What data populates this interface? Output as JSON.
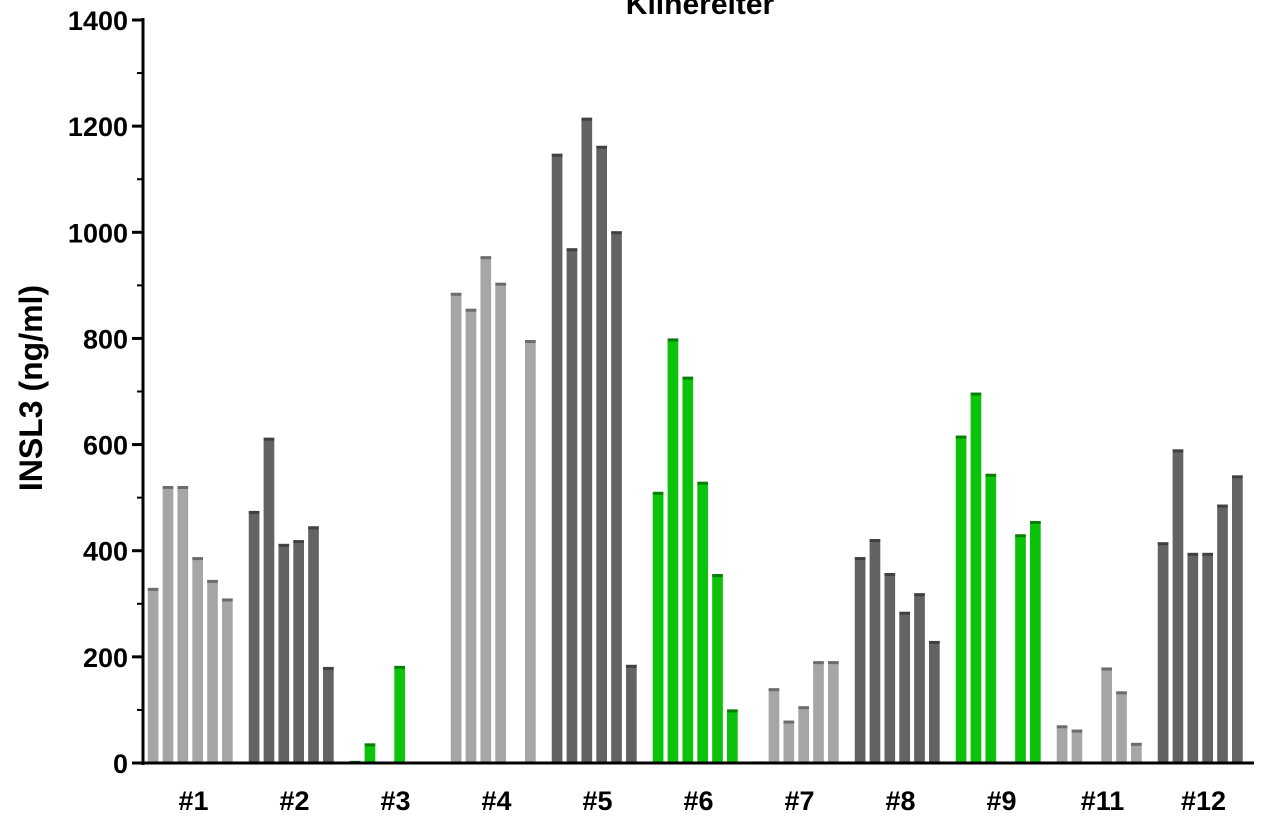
{
  "chart_data": {
    "type": "bar",
    "title": "Klinereiter",
    "ylabel": "INSL3 (ng/ml)",
    "xlabel": "",
    "ylim": [
      0,
      1400
    ],
    "yticks": [
      0,
      200,
      400,
      600,
      800,
      1000,
      1200,
      1400
    ],
    "grid": false,
    "colors": {
      "light_gray": "#a6a6a8",
      "dark_gray": "#636363",
      "green": "#0bc30b"
    },
    "categories": [
      "#1",
      "#2",
      "#3",
      "#4",
      "#5",
      "#6",
      "#7",
      "#8",
      "#9",
      "#11",
      "#12"
    ],
    "groups": [
      {
        "label": "#1",
        "color": "light_gray",
        "values": [
          330,
          522,
          522,
          388,
          345,
          310
        ]
      },
      {
        "label": "#2",
        "color": "dark_gray",
        "values": [
          475,
          613,
          413,
          420,
          446,
          181
        ]
      },
      {
        "label": "#3",
        "color": "green",
        "values": [
          4,
          37,
          null,
          183
        ]
      },
      {
        "label": "#4",
        "color": "light_gray",
        "values": [
          886,
          856,
          955,
          905,
          null,
          797
        ]
      },
      {
        "label": "#5",
        "color": "dark_gray",
        "values": [
          1148,
          970,
          1216,
          1163,
          1002,
          185
        ]
      },
      {
        "label": "#6",
        "color": "green",
        "values": [
          511,
          800,
          728,
          530,
          356,
          101
        ]
      },
      {
        "label": "#7",
        "color": "light_gray",
        "values": [
          3,
          141,
          80,
          107,
          192,
          192
        ]
      },
      {
        "label": "#8",
        "color": "dark_gray",
        "values": [
          388,
          422,
          358,
          285,
          320,
          230
        ]
      },
      {
        "label": "#9",
        "color": "green",
        "values": [
          617,
          698,
          545,
          null,
          431,
          456
        ]
      },
      {
        "label": "#11",
        "color": "light_gray",
        "values": [
          71,
          63,
          null,
          180,
          135,
          38
        ]
      },
      {
        "label": "#12",
        "color": "dark_gray",
        "values": [
          416,
          591,
          396,
          396,
          487,
          542
        ]
      }
    ]
  }
}
